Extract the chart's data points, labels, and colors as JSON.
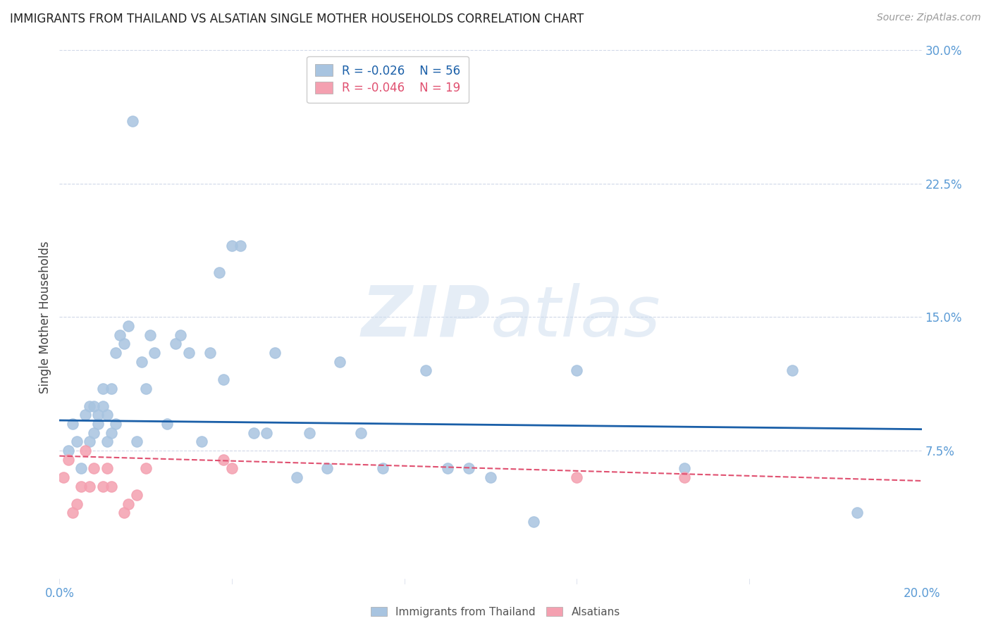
{
  "title": "IMMIGRANTS FROM THAILAND VS ALSATIAN SINGLE MOTHER HOUSEHOLDS CORRELATION CHART",
  "source": "Source: ZipAtlas.com",
  "ylabel": "Single Mother Households",
  "xlim": [
    0.0,
    0.2
  ],
  "ylim": [
    0.0,
    0.3
  ],
  "xticks": [
    0.0,
    0.04,
    0.08,
    0.12,
    0.16,
    0.2
  ],
  "yticks_right": [
    0.075,
    0.15,
    0.225,
    0.3
  ],
  "ytick_labels_right": [
    "7.5%",
    "15.0%",
    "22.5%",
    "30.0%"
  ],
  "xtick_labels": [
    "0.0%",
    "",
    "",
    "",
    "",
    "20.0%"
  ],
  "legend_labels": [
    "Immigrants from Thailand",
    "Alsatians"
  ],
  "blue_R": "-0.026",
  "blue_N": "56",
  "pink_R": "-0.046",
  "pink_N": "19",
  "blue_color": "#a8c4e0",
  "blue_line_color": "#1a5fa8",
  "pink_color": "#f4a0b0",
  "pink_line_color": "#e05070",
  "watermark_zip": "ZIP",
  "watermark_atlas": "atlas",
  "blue_scatter_x": [
    0.002,
    0.003,
    0.004,
    0.005,
    0.006,
    0.007,
    0.007,
    0.008,
    0.008,
    0.009,
    0.009,
    0.01,
    0.01,
    0.011,
    0.011,
    0.012,
    0.012,
    0.013,
    0.013,
    0.014,
    0.015,
    0.016,
    0.017,
    0.018,
    0.019,
    0.02,
    0.021,
    0.022,
    0.025,
    0.027,
    0.028,
    0.03,
    0.033,
    0.035,
    0.037,
    0.038,
    0.04,
    0.042,
    0.045,
    0.048,
    0.05,
    0.055,
    0.058,
    0.062,
    0.065,
    0.07,
    0.075,
    0.085,
    0.09,
    0.095,
    0.1,
    0.11,
    0.12,
    0.145,
    0.17,
    0.185
  ],
  "blue_scatter_y": [
    0.075,
    0.09,
    0.08,
    0.065,
    0.095,
    0.08,
    0.1,
    0.085,
    0.1,
    0.09,
    0.095,
    0.1,
    0.11,
    0.08,
    0.095,
    0.085,
    0.11,
    0.13,
    0.09,
    0.14,
    0.135,
    0.145,
    0.26,
    0.08,
    0.125,
    0.11,
    0.14,
    0.13,
    0.09,
    0.135,
    0.14,
    0.13,
    0.08,
    0.13,
    0.175,
    0.115,
    0.19,
    0.19,
    0.085,
    0.085,
    0.13,
    0.06,
    0.085,
    0.065,
    0.125,
    0.085,
    0.065,
    0.12,
    0.065,
    0.065,
    0.06,
    0.035,
    0.12,
    0.065,
    0.12,
    0.04
  ],
  "pink_scatter_x": [
    0.001,
    0.002,
    0.003,
    0.004,
    0.005,
    0.006,
    0.007,
    0.008,
    0.01,
    0.011,
    0.012,
    0.015,
    0.016,
    0.018,
    0.02,
    0.038,
    0.04,
    0.12,
    0.145
  ],
  "pink_scatter_y": [
    0.06,
    0.07,
    0.04,
    0.045,
    0.055,
    0.075,
    0.055,
    0.065,
    0.055,
    0.065,
    0.055,
    0.04,
    0.045,
    0.05,
    0.065,
    0.07,
    0.065,
    0.06,
    0.06
  ],
  "blue_trend_y_start": 0.092,
  "blue_trend_y_end": 0.087,
  "pink_trend_y_start": 0.072,
  "pink_trend_y_end": 0.058,
  "marker_size": 120,
  "background_color": "#ffffff",
  "axis_color": "#5b9bd5",
  "grid_color": "#d0d8e8",
  "title_fontsize": 12,
  "source_fontsize": 10
}
